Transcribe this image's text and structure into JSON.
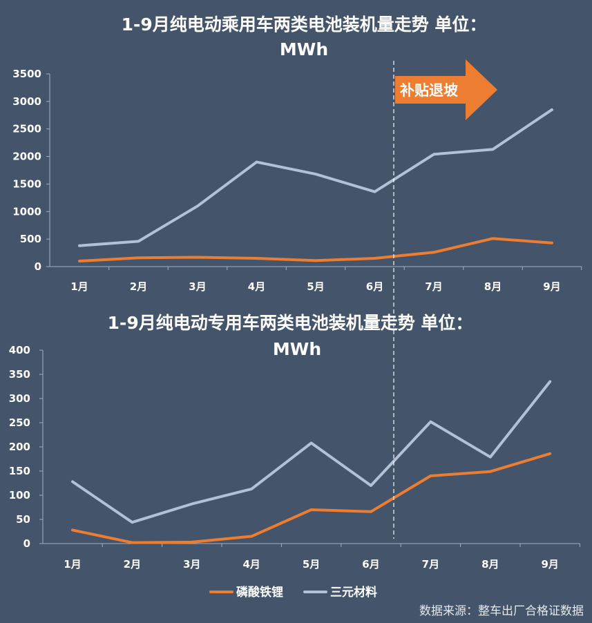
{
  "chart_data": [
    {
      "type": "line",
      "title": "1-9月纯电动乘用车两类电池装机量走势  单位：",
      "title_unit": "MWh",
      "categories": [
        "1月",
        "2月",
        "3月",
        "4月",
        "5月",
        "6月",
        "7月",
        "8月",
        "9月"
      ],
      "ylim": [
        0,
        3500
      ],
      "yticks": [
        0,
        500,
        1000,
        1500,
        2000,
        2500,
        3000,
        3500
      ],
      "ytick_labels": [
        "0",
        "500",
        "1000",
        "1500",
        "2000",
        "2500",
        "3000",
        "3500"
      ],
      "series": [
        {
          "name": "磷酸铁锂",
          "color": "#ed7d31",
          "values": [
            100,
            160,
            170,
            150,
            110,
            150,
            260,
            510,
            430
          ]
        },
        {
          "name": "三元材料",
          "color": "#b4c0d6",
          "values": [
            380,
            460,
            1100,
            1900,
            1680,
            1360,
            2040,
            2130,
            2850
          ]
        }
      ],
      "annotation": {
        "text": "补贴退坡",
        "color": "#ed7d31"
      },
      "grid": false
    },
    {
      "type": "line",
      "title": "1-9月纯电动专用车两类电池装机量走势  单位：",
      "title_unit": "MWh",
      "categories": [
        "1月",
        "2月",
        "3月",
        "4月",
        "5月",
        "6月",
        "7月",
        "8月",
        "9月"
      ],
      "ylim": [
        0,
        400
      ],
      "yticks": [
        0,
        50,
        100,
        150,
        200,
        250,
        300,
        350,
        400
      ],
      "ytick_labels": [
        "0",
        "50",
        "100",
        "150",
        "200",
        "250",
        "300",
        "350",
        "400"
      ],
      "series": [
        {
          "name": "磷酸铁锂",
          "color": "#ed7d31",
          "values": [
            28,
            2,
            3,
            15,
            70,
            66,
            140,
            149,
            186
          ]
        },
        {
          "name": "三元材料",
          "color": "#b4c0d6",
          "values": [
            128,
            44,
            82,
            113,
            208,
            120,
            252,
            179,
            335
          ]
        }
      ],
      "grid": false
    }
  ],
  "legend": {
    "placement": "bottom-center",
    "items": [
      {
        "label": "磷酸铁锂",
        "color": "#ed7d31"
      },
      {
        "label": "三元材料",
        "color": "#b4c0d6"
      }
    ]
  },
  "source_note": "数据来源：整车出厂合格证数据",
  "colors": {
    "background": "#44546a",
    "axis": "#a6b0c0",
    "divider": "#ffffff"
  }
}
